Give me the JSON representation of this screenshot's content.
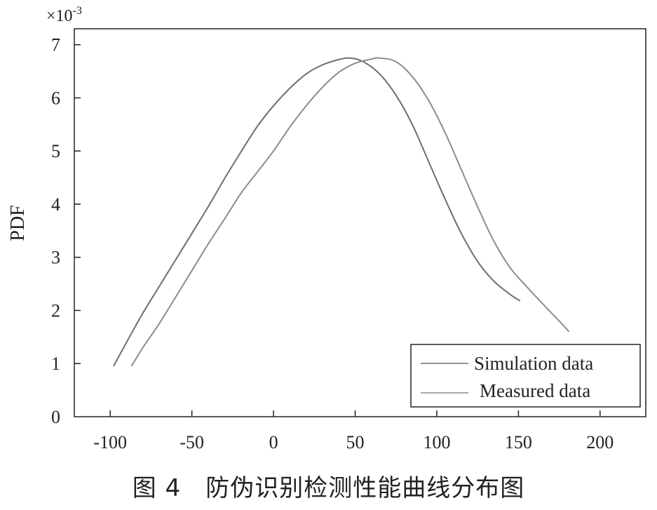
{
  "chart_data": {
    "type": "line",
    "ylabel": "PDF",
    "y_multiplier": "×10",
    "y_exponent": "-3",
    "xlim": [
      -122,
      228
    ],
    "ylim": [
      0,
      7.3
    ],
    "xticks": [
      -100,
      -50,
      0,
      50,
      100,
      150,
      200
    ],
    "yticks": [
      0,
      1,
      2,
      3,
      4,
      5,
      6,
      7
    ],
    "grid": false,
    "legend_position": "bottom-right",
    "series": [
      {
        "name": "Simulation data",
        "color": "#6e6e6e",
        "x": [
          -98,
          -90,
          -80,
          -70,
          -60,
          -50,
          -40,
          -30,
          -20,
          -10,
          0,
          10,
          20,
          30,
          40,
          47,
          55,
          65,
          75,
          85,
          95,
          105,
          115,
          125,
          135,
          145,
          151
        ],
        "y": [
          0.95,
          1.4,
          1.95,
          2.45,
          2.95,
          3.45,
          3.95,
          4.48,
          4.98,
          5.46,
          5.85,
          6.18,
          6.45,
          6.62,
          6.72,
          6.75,
          6.68,
          6.45,
          6.05,
          5.5,
          4.8,
          4.1,
          3.45,
          2.92,
          2.55,
          2.3,
          2.18
        ]
      },
      {
        "name": "Measured data",
        "color": "#8c8c8c",
        "x": [
          -87,
          -80,
          -70,
          -60,
          -50,
          -40,
          -30,
          -20,
          -10,
          0,
          10,
          20,
          30,
          40,
          50,
          60,
          65,
          75,
          85,
          95,
          105,
          115,
          125,
          135,
          145,
          155,
          165,
          175,
          181
        ],
        "y": [
          0.95,
          1.3,
          1.75,
          2.25,
          2.75,
          3.25,
          3.72,
          4.2,
          4.6,
          5.0,
          5.45,
          5.85,
          6.2,
          6.48,
          6.65,
          6.73,
          6.75,
          6.68,
          6.4,
          5.95,
          5.35,
          4.65,
          3.95,
          3.3,
          2.8,
          2.45,
          2.12,
          1.8,
          1.6
        ]
      }
    ]
  },
  "caption": "图 4　防伪识别检测性能曲线分布图"
}
